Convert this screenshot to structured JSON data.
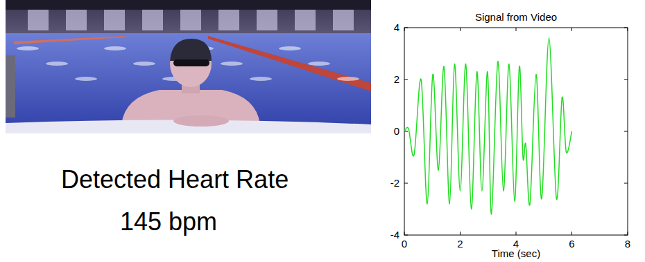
{
  "readout": {
    "label": "Detected Heart Rate",
    "value": "145 bpm"
  },
  "chart_data": {
    "type": "line",
    "title": "Signal from Video",
    "x_label": "Time (sec)",
    "x": [
      0,
      0.15,
      0.35,
      0.6,
      0.82,
      1.02,
      1.22,
      1.42,
      1.62,
      1.8,
      2.0,
      2.2,
      2.4,
      2.6,
      2.78,
      2.98,
      3.12,
      3.35,
      3.55,
      3.75,
      3.95,
      4.12,
      4.25,
      4.35,
      4.5,
      4.72,
      4.92,
      5.18,
      5.45,
      5.65,
      5.8,
      6.0
    ],
    "series": [
      {
        "name": "Signal",
        "color": "#22dd22",
        "values": [
          0,
          0.1,
          -0.9,
          2.0,
          -2.8,
          2.2,
          -1.5,
          2.5,
          -2.8,
          2.6,
          -2.3,
          2.6,
          -3.0,
          2.3,
          -2.3,
          2.3,
          -3.2,
          2.7,
          -2.3,
          2.6,
          -2.7,
          2.5,
          -1.0,
          -0.5,
          -2.8,
          2.2,
          -2.6,
          3.6,
          -2.6,
          1.3,
          -0.8,
          0.0
        ]
      }
    ],
    "xlim": [
      0,
      8
    ],
    "xticks": [
      0,
      2,
      4,
      6,
      8
    ],
    "ylim": [
      -4,
      4
    ],
    "yticks": [
      -4,
      -2,
      0,
      2,
      4
    ],
    "grid": false
  }
}
